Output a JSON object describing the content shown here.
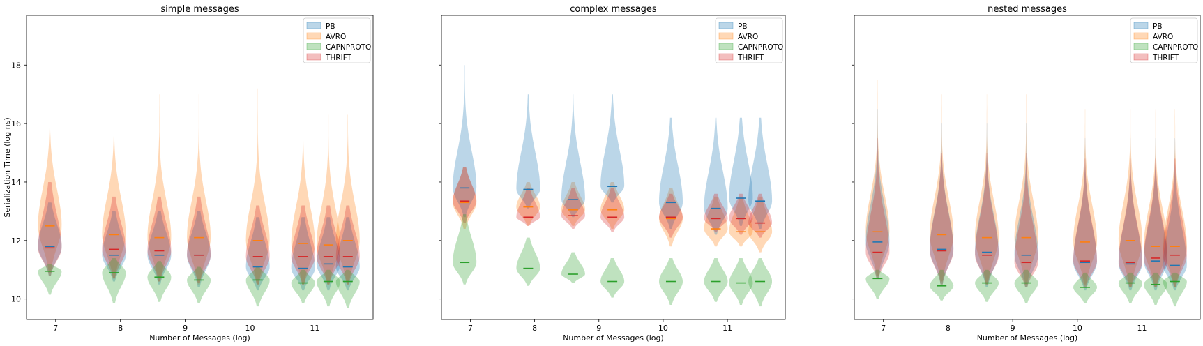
{
  "series_colors": {
    "PB": "#1f77b4",
    "AVRO": "#ff7f0e",
    "CAPNPROTO": "#2ca02c",
    "THRIFT": "#d62728"
  },
  "chart_data": [
    {
      "type": "violin",
      "title": "simple messages",
      "xlabel": "Number of Messages (log)",
      "ylabel": "Serialization Time (log ns)",
      "xlim": [
        6.55,
        11.9
      ],
      "ylim": [
        9.3,
        19.7
      ],
      "xticks": [
        7,
        8,
        9,
        10,
        11
      ],
      "yticks": [
        10,
        12,
        14,
        16,
        18
      ],
      "legend": [
        "PB",
        "AVRO",
        "CAPNPROTO",
        "THRIFT"
      ],
      "legend_position": "top-right",
      "positions": [
        6.91,
        7.9,
        8.6,
        9.21,
        10.12,
        10.82,
        11.21,
        11.51
      ],
      "series": [
        {
          "name": "PB",
          "medians": [
            11.8,
            11.5,
            11.5,
            11.5,
            11.1,
            11.05,
            11.2,
            11.1
          ],
          "lows": [
            10.8,
            10.6,
            10.5,
            10.4,
            10.3,
            10.3,
            10.3,
            10.3
          ],
          "highs": [
            13.3,
            13.0,
            13.0,
            13.0,
            12.8,
            12.8,
            12.8,
            12.8
          ]
        },
        {
          "name": "AVRO",
          "medians": [
            12.5,
            12.2,
            12.1,
            12.1,
            12.0,
            11.9,
            11.85,
            12.0
          ],
          "lows": [
            10.9,
            10.7,
            10.6,
            10.5,
            10.5,
            10.5,
            10.5,
            10.5
          ],
          "highs": [
            17.5,
            17.0,
            17.0,
            17.0,
            17.2,
            16.3,
            16.3,
            16.3
          ]
        },
        {
          "name": "CAPNPROTO",
          "medians": [
            10.95,
            10.9,
            10.75,
            10.65,
            10.65,
            10.55,
            10.6,
            10.6
          ],
          "lows": [
            10.15,
            9.85,
            9.9,
            9.85,
            9.75,
            9.85,
            9.75,
            9.7
          ],
          "highs": [
            11.2,
            11.4,
            11.3,
            11.1,
            11.1,
            11.0,
            11.0,
            11.0
          ]
        },
        {
          "name": "THRIFT",
          "medians": [
            11.75,
            11.7,
            11.65,
            11.5,
            11.45,
            11.45,
            11.45,
            11.45
          ],
          "lows": [
            10.8,
            10.7,
            10.6,
            10.55,
            10.5,
            10.5,
            10.5,
            10.5
          ],
          "highs": [
            14.0,
            13.5,
            13.5,
            13.5,
            13.2,
            13.2,
            13.2,
            13.2
          ]
        }
      ]
    },
    {
      "type": "violin",
      "title": "complex messages",
      "xlabel": "Number of Messages (log)",
      "ylabel": "",
      "xlim": [
        6.55,
        11.9
      ],
      "ylim": [
        9.3,
        19.7
      ],
      "xticks": [
        7,
        8,
        9,
        10,
        11
      ],
      "yticks": [
        10,
        12,
        14,
        16,
        18
      ],
      "legend": [
        "PB",
        "AVRO",
        "CAPNPROTO",
        "THRIFT"
      ],
      "legend_position": "top-right",
      "positions": [
        6.91,
        7.9,
        8.6,
        9.21,
        10.12,
        10.82,
        11.21,
        11.51
      ],
      "series": [
        {
          "name": "PB",
          "medians": [
            13.8,
            13.75,
            13.4,
            13.85,
            13.3,
            13.1,
            13.45,
            13.35
          ],
          "lows": [
            12.8,
            13.1,
            12.8,
            13.3,
            12.4,
            12.2,
            12.5,
            12.4
          ],
          "highs": [
            18.0,
            17.0,
            17.0,
            17.0,
            16.2,
            16.2,
            16.2,
            16.2
          ]
        },
        {
          "name": "AVRO",
          "medians": [
            13.3,
            13.15,
            13.05,
            13.05,
            12.75,
            12.4,
            12.3,
            12.3
          ],
          "lows": [
            12.4,
            12.5,
            12.5,
            12.4,
            11.8,
            11.8,
            11.8,
            11.6
          ],
          "highs": [
            14.5,
            14.0,
            14.0,
            14.0,
            13.8,
            13.5,
            13.5,
            13.5
          ]
        },
        {
          "name": "CAPNPROTO",
          "medians": [
            11.25,
            11.05,
            10.85,
            10.6,
            10.6,
            10.6,
            10.55,
            10.6
          ],
          "lows": [
            10.5,
            10.45,
            10.55,
            10.05,
            9.8,
            9.9,
            9.8,
            9.75
          ],
          "highs": [
            12.9,
            12.1,
            11.6,
            11.4,
            11.4,
            11.4,
            11.4,
            11.4
          ]
        },
        {
          "name": "THRIFT",
          "medians": [
            13.35,
            12.8,
            12.85,
            12.8,
            12.8,
            12.75,
            12.75,
            12.6
          ],
          "lows": [
            12.6,
            12.5,
            12.4,
            12.3,
            12.1,
            12.3,
            12.2,
            12.1
          ],
          "highs": [
            14.5,
            13.8,
            13.8,
            13.8,
            13.6,
            13.6,
            13.6,
            13.6
          ]
        }
      ]
    },
    {
      "type": "violin",
      "title": "nested messages",
      "xlabel": "Number of Messages (log)",
      "ylabel": "",
      "xlim": [
        6.55,
        11.9
      ],
      "ylim": [
        9.3,
        19.7
      ],
      "xticks": [
        7,
        8,
        9,
        10,
        11
      ],
      "yticks": [
        10,
        12,
        14,
        16,
        18
      ],
      "legend": [
        "PB",
        "AVRO",
        "CAPNPROTO",
        "THRIFT"
      ],
      "legend_position": "top-right",
      "positions": [
        6.91,
        7.9,
        8.6,
        9.21,
        10.12,
        10.82,
        11.21,
        11.51
      ],
      "series": [
        {
          "name": "PB",
          "medians": [
            11.95,
            11.7,
            11.6,
            11.5,
            11.25,
            11.2,
            11.3,
            11.15
          ],
          "lows": [
            10.7,
            10.5,
            10.4,
            10.4,
            10.3,
            10.3,
            10.3,
            10.3
          ],
          "highs": [
            16.5,
            16.0,
            16.0,
            16.0,
            15.5,
            15.5,
            15.5,
            15.5
          ]
        },
        {
          "name": "AVRO",
          "medians": [
            12.3,
            12.2,
            12.1,
            12.1,
            11.95,
            12.0,
            11.8,
            11.8
          ],
          "lows": [
            10.8,
            10.6,
            10.5,
            10.5,
            10.5,
            10.4,
            10.4,
            10.4
          ],
          "highs": [
            17.5,
            17.0,
            17.0,
            17.0,
            16.5,
            16.5,
            16.5,
            16.5
          ]
        },
        {
          "name": "CAPNPROTO",
          "medians": [
            10.7,
            10.45,
            10.55,
            10.55,
            10.4,
            10.55,
            10.5,
            10.6
          ],
          "lows": [
            10.0,
            9.95,
            9.9,
            9.85,
            9.85,
            9.85,
            9.8,
            9.75
          ],
          "highs": [
            11.0,
            11.0,
            11.0,
            11.0,
            10.9,
            10.9,
            10.9,
            10.9
          ]
        },
        {
          "name": "THRIFT",
          "medians": [
            11.6,
            11.65,
            11.5,
            11.25,
            11.3,
            11.25,
            11.4,
            11.5
          ],
          "lows": [
            10.7,
            10.5,
            10.5,
            10.4,
            10.4,
            10.4,
            10.4,
            10.4
          ],
          "highs": [
            15.5,
            15.0,
            15.0,
            15.0,
            14.8,
            14.8,
            14.8,
            14.8
          ]
        }
      ]
    }
  ]
}
